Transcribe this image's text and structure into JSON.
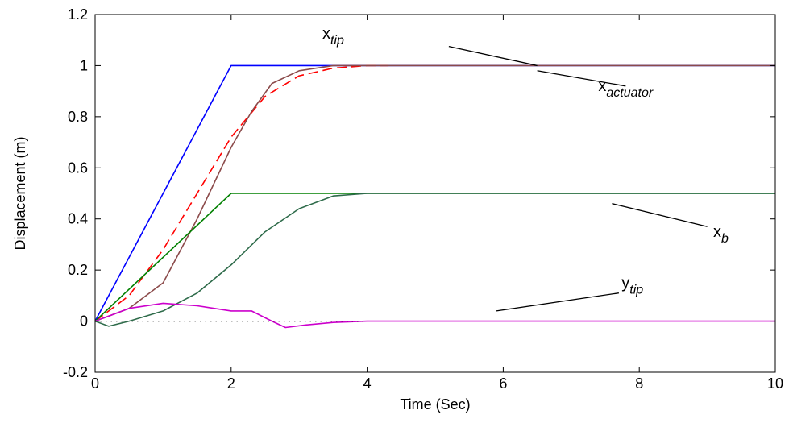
{
  "chart_data": {
    "type": "line",
    "title": "",
    "xlabel": "Time (Sec)",
    "ylabel": "Displacement (m)",
    "xlim": [
      0,
      10
    ],
    "ylim": [
      -0.2,
      1.2
    ],
    "xticks": [
      0,
      2,
      4,
      6,
      8,
      10
    ],
    "xtick_labels": [
      "0",
      "2",
      "4",
      "6",
      "8",
      "10"
    ],
    "yticks": [
      -0.2,
      0,
      0.2,
      0.4,
      0.6,
      0.8,
      1,
      1.2
    ],
    "ytick_labels": [
      "-0.2",
      "0",
      "0.2",
      "0.4",
      "0.6",
      "0.8",
      "1",
      "1.2"
    ],
    "grid": false,
    "series": [
      {
        "color": "#0000ff",
        "dash": "solid",
        "x": [
          0,
          2,
          10
        ],
        "y": [
          0,
          1,
          1
        ]
      },
      {
        "color": "#ff0000",
        "dash": "dashed",
        "x": [
          0,
          0.5,
          1,
          1.5,
          2,
          2.5,
          3,
          3.5,
          4,
          4.3
        ],
        "y": [
          0,
          0.1,
          0.28,
          0.5,
          0.72,
          0.88,
          0.96,
          0.99,
          1,
          1
        ]
      },
      {
        "color": "#8b4a4a",
        "dash": "solid",
        "x": [
          0,
          0.5,
          1,
          1.5,
          2,
          2.3,
          2.6,
          3,
          3.5,
          4,
          10
        ],
        "y": [
          0,
          0.05,
          0.15,
          0.4,
          0.68,
          0.82,
          0.93,
          0.98,
          1,
          1,
          1
        ]
      },
      {
        "color": "#008000",
        "dash": "solid",
        "x": [
          0,
          2,
          10
        ],
        "y": [
          0,
          0.5,
          0.5
        ]
      },
      {
        "color": "#2e6b4a",
        "dash": "solid",
        "x": [
          0,
          0.2,
          0.5,
          1,
          1.5,
          2,
          2.5,
          3,
          3.5,
          4,
          10
        ],
        "y": [
          0,
          -0.02,
          0,
          0.04,
          0.11,
          0.22,
          0.35,
          0.44,
          0.49,
          0.5,
          0.5
        ]
      },
      {
        "color": "#cc00cc",
        "dash": "solid",
        "x": [
          0,
          0.5,
          1,
          1.5,
          2,
          2.3,
          2.6,
          2.8,
          3.1,
          3.5,
          4,
          10
        ],
        "y": [
          0,
          0.05,
          0.07,
          0.06,
          0.04,
          0.04,
          0,
          -0.025,
          -0.015,
          -0.005,
          0,
          0
        ]
      },
      {
        "color": "#000000",
        "dash": "dotted",
        "x": [
          0,
          4
        ],
        "y": [
          0,
          0
        ]
      }
    ],
    "annotations": [
      {
        "main": "x",
        "sub": "tip",
        "text_at": [
          3.5,
          1.105
        ],
        "arrow_from": [
          5.2,
          1.075
        ],
        "arrow_to": [
          6.5,
          1.0
        ]
      },
      {
        "main": "x",
        "sub": "actuator",
        "text_at": [
          7.8,
          0.9
        ],
        "arrow_from": [
          7.8,
          0.92
        ],
        "arrow_to": [
          6.5,
          0.98
        ]
      },
      {
        "main": "x",
        "sub": "b",
        "text_at": [
          9.2,
          0.33
        ],
        "arrow_from": [
          9.0,
          0.37
        ],
        "arrow_to": [
          7.6,
          0.46
        ]
      },
      {
        "main": "y",
        "sub": "tip",
        "text_at": [
          7.9,
          0.13
        ],
        "arrow_from": [
          7.7,
          0.11
        ],
        "arrow_to": [
          5.9,
          0.04
        ]
      }
    ]
  }
}
